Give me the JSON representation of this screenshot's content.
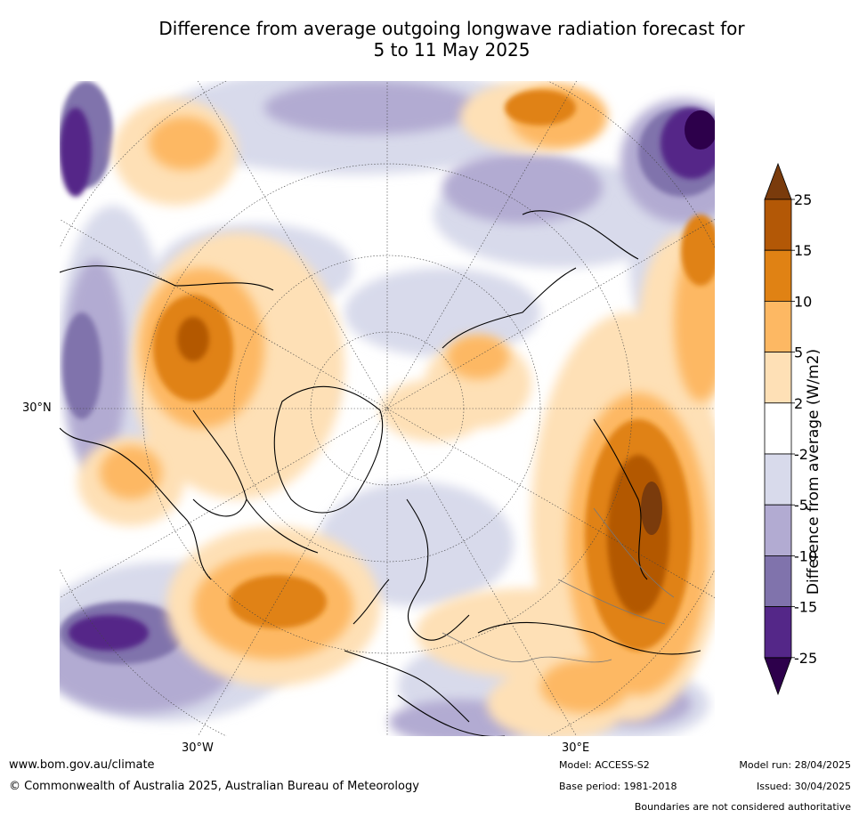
{
  "title_line1": "Difference from average outgoing longwave radiation forecast for",
  "title_line2": "5 to 11 May 2025",
  "axis_labels": {
    "lat_30n": "30°N",
    "lon_30w": "30°W",
    "lon_30e": "30°E"
  },
  "colorbar": {
    "title": "Difference from average (W/m2)",
    "ticks": [
      "25",
      "15",
      "10",
      "5",
      "2",
      "-2",
      "-5",
      "-10",
      "-15",
      "-25"
    ],
    "colors": {
      "above_25": "#7a3b0c",
      "15_25": "#b35806",
      "10_15": "#e08214",
      "5_10": "#fdb863",
      "2_5": "#fee0b6",
      "neutral": "#ffffff",
      "m2_m5": "#d8daeb",
      "m5_m10": "#b2abd2",
      "m10_m15": "#8073ac",
      "m15_m25": "#542788",
      "below_m25": "#2d004b"
    }
  },
  "footer": {
    "website": "www.bom.gov.au/climate",
    "copyright": "© Commonwealth of Australia 2025, Australian Bureau of Meteorology",
    "model": "Model: ACCESS-S2",
    "base_period": "Base period: 1981-2018",
    "model_run": "Model run: 28/04/2025",
    "issued": "Issued: 30/04/2025",
    "disclaimer": "Boundaries are not considered authoritative"
  }
}
